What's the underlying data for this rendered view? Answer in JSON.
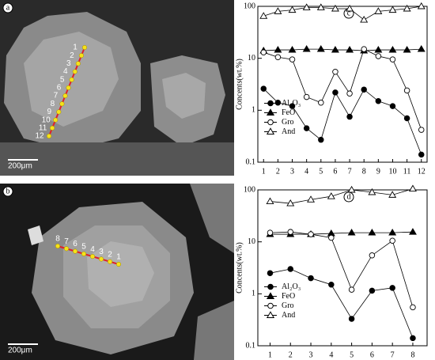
{
  "chart_data": [
    {
      "type": "line",
      "panel": "c",
      "y_label": "Concents(wt.%)",
      "log_scale": true,
      "legend": "center left",
      "x": [
        1,
        2,
        3,
        4,
        5,
        6,
        7,
        8,
        9,
        10,
        11,
        12
      ],
      "xlim": [
        0.6,
        12.4
      ],
      "xticks": [
        1,
        2,
        3,
        4,
        5,
        6,
        7,
        8,
        9,
        10,
        11,
        12
      ],
      "ylim": [
        0.1,
        100
      ],
      "yticks": [
        0.1,
        1,
        10,
        100
      ],
      "series": [
        {
          "name": "Al₂O₃",
          "color": "#000000",
          "marker": "circle",
          "marker_fill": "#000000",
          "values": [
            2.6,
            1.4,
            1.2,
            0.45,
            0.27,
            2.2,
            0.75,
            2.5,
            1.5,
            1.2,
            0.7,
            0.14
          ]
        },
        {
          "name": "FeO",
          "color": "#000000",
          "marker": "triangle",
          "marker_fill": "#000000",
          "values": [
            14,
            14.5,
            14.5,
            15,
            15,
            14.5,
            14.5,
            14,
            14.5,
            14.5,
            14.5,
            15
          ]
        },
        {
          "name": "Gro",
          "color": "#000000",
          "marker": "circle",
          "marker_fill": "#ffffff",
          "values": [
            13,
            10.5,
            9.5,
            1.8,
            1.4,
            5.5,
            2.1,
            15,
            11,
            9.5,
            2.4,
            0.42
          ]
        },
        {
          "name": "And",
          "color": "#000000",
          "marker": "triangle",
          "marker_fill": "#ffffff",
          "values": [
            65,
            80,
            85,
            95,
            95,
            90,
            90,
            55,
            80,
            85,
            90,
            100
          ]
        }
      ]
    },
    {
      "type": "line",
      "panel": "d",
      "y_label": "Concents(wt.%)",
      "log_scale": true,
      "legend": "center left",
      "x": [
        1,
        2,
        3,
        4,
        5,
        6,
        7,
        8
      ],
      "xlim": [
        0.4,
        8.7
      ],
      "xticks": [
        1,
        2,
        3,
        4,
        5,
        6,
        7,
        8
      ],
      "ylim": [
        0.1,
        100
      ],
      "yticks": [
        0.1,
        1,
        10,
        100
      ],
      "series": [
        {
          "name": "Al₂O₃",
          "color": "#000000",
          "marker": "circle",
          "marker_fill": "#000000",
          "values": [
            2.5,
            3.0,
            2.0,
            1.5,
            0.33,
            1.15,
            1.3,
            0.14
          ]
        },
        {
          "name": "FeO",
          "color": "#000000",
          "marker": "triangle",
          "marker_fill": "#000000",
          "values": [
            14,
            14,
            14,
            14.5,
            15,
            15,
            15,
            15.5
          ]
        },
        {
          "name": "Gro",
          "color": "#000000",
          "marker": "circle",
          "marker_fill": "#ffffff",
          "values": [
            15,
            15.5,
            14,
            12,
            1.2,
            5.5,
            10.5,
            0.55
          ]
        },
        {
          "name": "And",
          "color": "#000000",
          "marker": "triangle",
          "marker_fill": "#ffffff",
          "values": [
            60,
            55,
            65,
            75,
            100,
            90,
            80,
            105
          ]
        }
      ]
    }
  ],
  "images": [
    {
      "panel": "a",
      "scale_bar": "200μm",
      "points": [
        1,
        2,
        3,
        4,
        5,
        6,
        7,
        8,
        9,
        10,
        11,
        12
      ]
    },
    {
      "panel": "b",
      "scale_bar": "200μm",
      "points": [
        1,
        2,
        3,
        4,
        5,
        6,
        7,
        8
      ]
    }
  ]
}
